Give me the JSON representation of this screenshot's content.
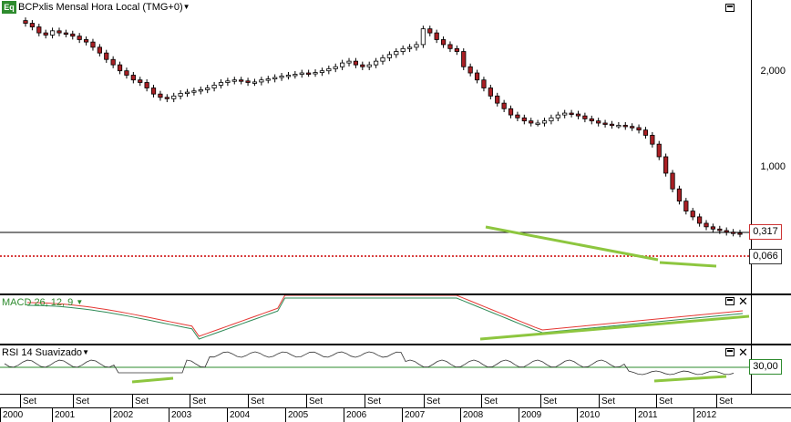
{
  "main_pane": {
    "badge": "Eq",
    "title": "BCPxlis Mensal Hora Local (TMG+0)",
    "price_labels": [
      "2,000",
      "1,000"
    ],
    "last_price": "0,066",
    "ref_price": "0,317"
  },
  "macd_pane": {
    "title": "MACD 26, 12, 9"
  },
  "rsi_pane": {
    "title": "RSI 14 Suavizado",
    "level": "30,00"
  },
  "colors": {
    "up": "#ffffff",
    "down": "#aa1f24",
    "wick": "#000000",
    "trend": "#8dc63f",
    "macd_line": "#2e8b57",
    "signal_line": "#e53935",
    "rsi_line": "#333333",
    "rsi_level": "#2e8b2e",
    "dotted": "#cc0000"
  },
  "time_axis": {
    "month_marks": [
      "Set",
      "Set",
      "Set",
      "Set",
      "Set",
      "Set",
      "Set",
      "Set",
      "Set",
      "Set",
      "Set",
      "Set",
      "Set"
    ],
    "years": [
      "2000",
      "2001",
      "2002",
      "2003",
      "2004",
      "2005",
      "2006",
      "2007",
      "2008",
      "2009",
      "2010",
      "2011",
      "2012"
    ]
  },
  "chart_data": {
    "type": "candlestick",
    "y_scale": "log",
    "series_close": [
      3.1,
      2.9,
      2.6,
      2.5,
      2.7,
      2.6,
      2.55,
      2.45,
      2.3,
      2.2,
      2.0,
      1.8,
      1.6,
      1.45,
      1.3,
      1.2,
      1.1,
      1.05,
      0.95,
      0.85,
      0.8,
      0.78,
      0.82,
      0.86,
      0.88,
      0.9,
      0.92,
      0.95,
      1.0,
      1.05,
      1.08,
      1.1,
      1.08,
      1.05,
      1.06,
      1.1,
      1.12,
      1.15,
      1.18,
      1.2,
      1.22,
      1.25,
      1.24,
      1.26,
      1.3,
      1.35,
      1.4,
      1.5,
      1.55,
      1.45,
      1.4,
      1.45,
      1.55,
      1.65,
      1.75,
      1.85,
      1.95,
      2.0,
      2.1,
      2.8,
      2.6,
      2.3,
      2.1,
      1.95,
      1.85,
      1.4,
      1.25,
      1.1,
      0.95,
      0.82,
      0.72,
      0.65,
      0.58,
      0.55,
      0.52,
      0.5,
      0.5,
      0.52,
      0.55,
      0.58,
      0.6,
      0.59,
      0.57,
      0.54,
      0.52,
      0.5,
      0.49,
      0.48,
      0.48,
      0.47,
      0.46,
      0.44,
      0.4,
      0.34,
      0.27,
      0.2,
      0.15,
      0.12,
      0.1,
      0.09,
      0.08,
      0.075,
      0.072,
      0.07,
      0.068,
      0.067,
      0.066
    ]
  }
}
